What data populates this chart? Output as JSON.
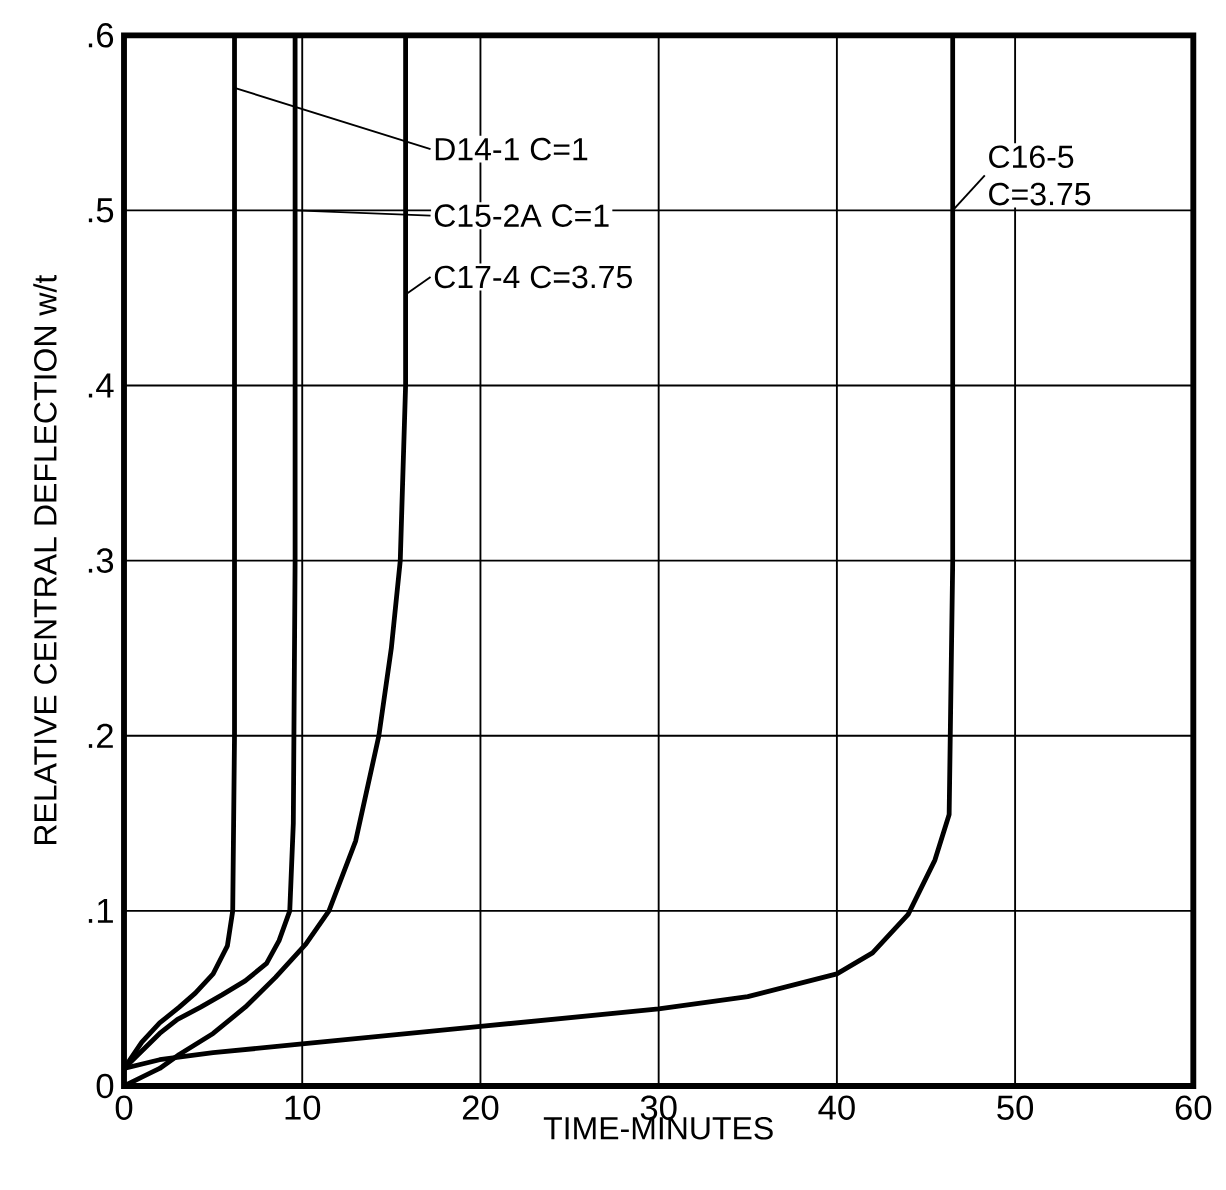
{
  "chart_data": {
    "type": "line",
    "xlabel": "TIME-MINUTES",
    "ylabel": "RELATIVE CENTRAL DEFLECTION w/t",
    "xlim": [
      0,
      60
    ],
    "ylim": [
      0,
      0.6
    ],
    "xticks": [
      0,
      10,
      20,
      30,
      40,
      50,
      60
    ],
    "yticks": [
      0,
      {
        "value": 0.1,
        "label": ".1"
      },
      {
        "value": 0.2,
        "label": ".2"
      },
      {
        "value": 0.3,
        "label": ".3"
      },
      {
        "value": 0.4,
        "label": ".4"
      },
      {
        "value": 0.5,
        "label": ".5"
      },
      {
        "value": 0.6,
        "label": ".6"
      }
    ],
    "grid": true,
    "legend": "top",
    "marker": "none",
    "line_style": "solid",
    "series": [
      {
        "name": "D14-1 C=1",
        "color": "#000000",
        "x": [
          0,
          1,
          2,
          3.1,
          4,
          5,
          5.8,
          6.1,
          6.2,
          6.2
        ],
        "values": [
          0.01,
          0.025,
          0.036,
          0.045,
          0.053,
          0.064,
          0.08,
          0.1,
          0.2,
          0.6
        ]
      },
      {
        "name": "C15-2A C=1",
        "color": "#000000",
        "x": [
          0,
          1,
          2,
          3,
          4.3,
          5.5,
          6.8,
          8,
          8.7,
          9.3,
          9.5,
          9.6,
          9.6
        ],
        "values": [
          0.01,
          0.02,
          0.03,
          0.038,
          0.045,
          0.052,
          0.06,
          0.07,
          0.083,
          0.1,
          0.15,
          0.3,
          0.6
        ]
      },
      {
        "name": "C17-4 C=3.75",
        "color": "#000000",
        "x": [
          0,
          1,
          2,
          3.1,
          5,
          6.8,
          8.5,
          10.2,
          11.5,
          13,
          14.3,
          15,
          15.5,
          15.8,
          15.8
        ],
        "values": [
          0,
          0.005,
          0.01,
          0.018,
          0.03,
          0.045,
          0.062,
          0.081,
          0.1,
          0.14,
          0.2,
          0.25,
          0.3,
          0.4,
          0.6
        ]
      },
      {
        "name": "C16-5 C=3.75",
        "color": "#000000",
        "x": [
          0,
          2,
          5,
          10,
          20,
          30,
          35,
          40,
          42,
          44,
          45.5,
          46.3,
          46.5,
          46.5
        ],
        "values": [
          0.01,
          0.015,
          0.019,
          0.024,
          0.034,
          0.044,
          0.051,
          0.064,
          0.076,
          0.098,
          0.129,
          0.155,
          0.3,
          0.6
        ]
      }
    ]
  }
}
